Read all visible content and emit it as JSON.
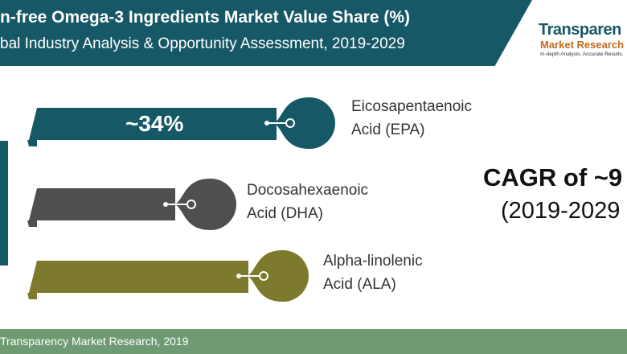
{
  "header": {
    "title": "n-free Omega-3 Ingredients Market Value Share (%)",
    "subtitle": "bal Industry Analysis & Opportunity Assessment, 2019-2029"
  },
  "logo": {
    "line1": "Transparen",
    "line2": "Market Research",
    "tagline": "In-depth Analysis. Accurate Results."
  },
  "chart_data": {
    "type": "bar",
    "orientation": "horizontal",
    "categories": [
      "Eicosapentaenoic Acid (EPA)",
      "Docosahexaenoic Acid (DHA)",
      "Alpha-linolenic Acid (ALA)"
    ],
    "values": [
      34,
      null,
      null
    ],
    "data_labels": [
      "~34%",
      "",
      ""
    ],
    "label_lines": [
      [
        "Eicosapentaenoic",
        "Acid (EPA)"
      ],
      [
        "Docosahexaenoic",
        "Acid (DHA)"
      ],
      [
        "Alpha-linolenic",
        "Acid (ALA)"
      ]
    ],
    "colors": [
      "#175866",
      "#4f4f4f",
      "#7d7a2e"
    ],
    "title": "n-free Omega-3 Ingredients Market Value Share (%)"
  },
  "cagr": {
    "title": "CAGR of ~9",
    "period": "(2019-2029"
  },
  "footer": {
    "source": "Transparency Market Research, 2019"
  }
}
